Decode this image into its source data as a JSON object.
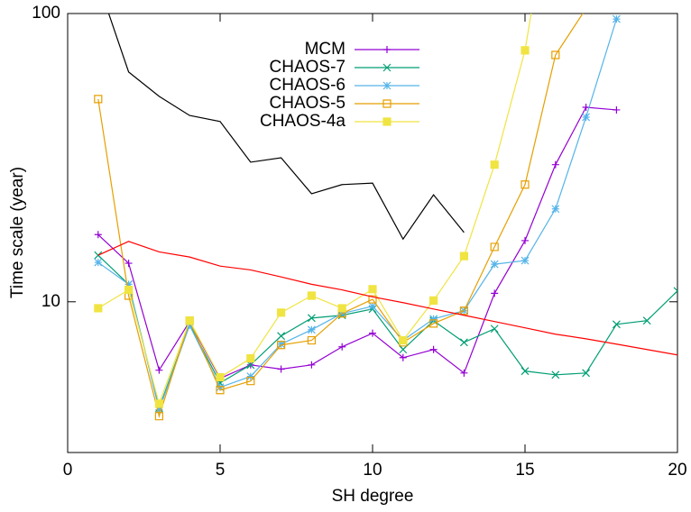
{
  "chart_data": {
    "type": "line",
    "xlabel": "SH degree",
    "ylabel": "Time scale (year)",
    "xlim": [
      0,
      20
    ],
    "xticks": [
      0,
      5,
      10,
      15,
      20
    ],
    "ylim": [
      3,
      100
    ],
    "yticks": [
      10,
      100
    ],
    "log_y": true,
    "series": [
      {
        "name": "MCM",
        "color": "#9400d3",
        "marker": "plus",
        "x": [
          1,
          2,
          3,
          4,
          5,
          6,
          7,
          8,
          9,
          10,
          11,
          12,
          13,
          14,
          15,
          16,
          17,
          18
        ],
        "values": [
          17.1,
          13.6,
          5.79,
          8.54,
          5.42,
          6.04,
          5.84,
          6.04,
          6.98,
          7.78,
          6.4,
          6.83,
          5.66,
          10.7,
          16.3,
          29.9,
          47.3,
          46.3
        ]
      },
      {
        "name": "CHAOS-7",
        "color": "#009e73",
        "marker": "cross",
        "x": [
          1,
          2,
          3,
          4,
          5,
          6,
          7,
          8,
          9,
          10,
          11,
          12,
          13,
          14,
          15,
          16,
          17,
          18,
          19,
          20
        ],
        "values": [
          14.5,
          11.5,
          4.28,
          8.35,
          5.23,
          6.04,
          7.61,
          8.78,
          8.98,
          9.44,
          6.83,
          8.6,
          7.23,
          8.06,
          5.75,
          5.58,
          5.66,
          8.35,
          8.6,
          10.9
        ]
      },
      {
        "name": "CHAOS-6",
        "color": "#56b4e9",
        "marker": "star",
        "x": [
          1,
          2,
          3,
          4,
          5,
          6,
          7,
          8,
          9,
          10,
          11,
          12,
          13,
          14,
          15,
          16,
          17,
          18
        ],
        "values": [
          13.7,
          11.5,
          4.22,
          8.29,
          5.05,
          5.51,
          7.13,
          8.0,
          9.11,
          9.65,
          7.35,
          8.72,
          9.31,
          13.5,
          13.9,
          21.0,
          43.7,
          95.7
        ]
      },
      {
        "name": "CHAOS-5",
        "color": "#e69f00",
        "marker": "open-square",
        "x": [
          1,
          2,
          3,
          4,
          5,
          6,
          7,
          8,
          9,
          10,
          11,
          12,
          13,
          14,
          15,
          16,
          17
        ],
        "values": [
          50.5,
          10.5,
          4.01,
          8.6,
          4.94,
          5.31,
          7.08,
          7.35,
          9.11,
          10.2,
          7.23,
          8.41,
          9.31,
          15.5,
          25.5,
          71.8,
          104
        ]
      },
      {
        "name": "CHAOS-4a",
        "color": "#f0e442",
        "marker": "filled-square",
        "x": [
          1,
          2,
          3,
          4,
          5,
          6,
          7,
          8,
          9,
          10,
          11,
          12,
          13,
          14,
          15,
          16
        ],
        "values": [
          9.5,
          11.0,
          4.43,
          8.6,
          5.47,
          6.36,
          9.17,
          10.5,
          9.5,
          11.06,
          7.35,
          10.1,
          14.4,
          29.9,
          74.5,
          320
        ]
      },
      {
        "color": "#000000",
        "marker": "none",
        "x": [
          1,
          2,
          3,
          4,
          5,
          6,
          7,
          8,
          9,
          10,
          11,
          12,
          13
        ],
        "values": [
          128,
          62.7,
          51.6,
          44.3,
          42.2,
          30.5,
          31.6,
          23.7,
          25.5,
          25.8,
          16.5,
          23.5,
          17.4
        ]
      },
      {
        "color": "#ff0000",
        "marker": "none",
        "x": [
          1,
          2,
          3,
          4,
          5,
          6,
          7,
          8,
          9,
          10,
          11,
          12,
          13,
          14,
          15,
          16,
          17,
          18,
          19,
          20
        ],
        "values": [
          14.5,
          16.2,
          14.9,
          14.3,
          13.3,
          12.9,
          12.2,
          11.5,
          11.0,
          10.4,
          9.93,
          9.44,
          8.98,
          8.54,
          8.12,
          7.72,
          7.44,
          7.13,
          6.83,
          6.54
        ]
      }
    ]
  }
}
